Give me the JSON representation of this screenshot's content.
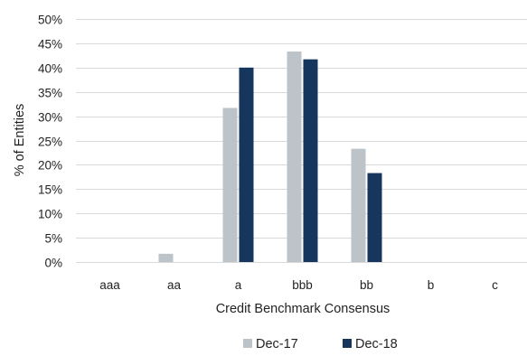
{
  "chart_data": {
    "type": "bar",
    "categories": [
      "aaa",
      "aa",
      "a",
      "bbb",
      "bb",
      "b",
      "c"
    ],
    "series": [
      {
        "name": "Dec-17",
        "values": [
          0,
          1.7,
          31.7,
          43.3,
          23.3,
          0,
          0
        ]
      },
      {
        "name": "Dec-18",
        "values": [
          0,
          0,
          40.0,
          41.7,
          18.3,
          0,
          0
        ]
      }
    ],
    "xlabel": "Credit Benchmark Consensus",
    "ylabel": "% of Entities",
    "ylim": [
      0,
      50
    ],
    "yticks": [
      "0%",
      "5%",
      "10%",
      "15%",
      "20%",
      "25%",
      "30%",
      "35%",
      "40%",
      "45%",
      "50%"
    ],
    "grid": true,
    "legend_position": "bottom",
    "colors": [
      "#bcc3c9",
      "#17365d"
    ]
  }
}
